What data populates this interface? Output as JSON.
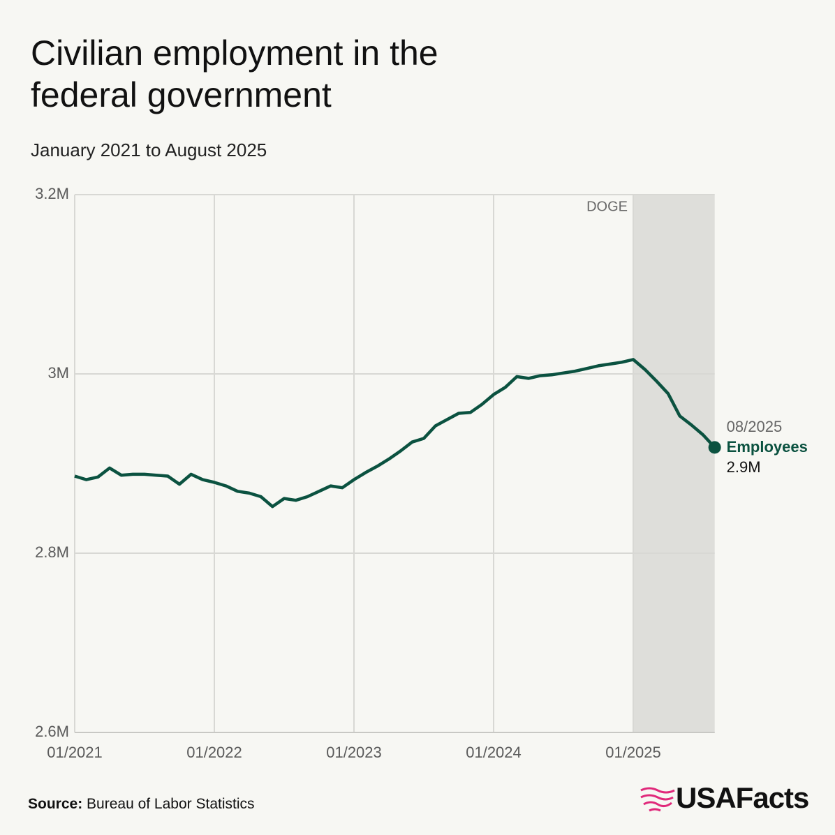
{
  "chart_data": {
    "type": "line",
    "title": "Civilian employment in the federal government",
    "subtitle": "January 2021 to August 2025",
    "x": [
      "01/2021",
      "02/2021",
      "03/2021",
      "04/2021",
      "05/2021",
      "06/2021",
      "07/2021",
      "08/2021",
      "09/2021",
      "10/2021",
      "11/2021",
      "12/2021",
      "01/2022",
      "02/2022",
      "03/2022",
      "04/2022",
      "05/2022",
      "06/2022",
      "07/2022",
      "08/2022",
      "09/2022",
      "10/2022",
      "11/2022",
      "12/2022",
      "01/2023",
      "02/2023",
      "03/2023",
      "04/2023",
      "05/2023",
      "06/2023",
      "07/2023",
      "08/2023",
      "09/2023",
      "10/2023",
      "11/2023",
      "12/2023",
      "01/2024",
      "02/2024",
      "03/2024",
      "04/2024",
      "05/2024",
      "06/2024",
      "07/2024",
      "08/2024",
      "09/2024",
      "10/2024",
      "11/2024",
      "12/2024",
      "01/2025",
      "02/2025",
      "03/2025",
      "04/2025",
      "05/2025",
      "06/2025",
      "07/2025",
      "08/2025"
    ],
    "series": [
      {
        "name": "Employees",
        "color": "#0b5240",
        "values": [
          2886000,
          2882000,
          2885000,
          2895000,
          2887000,
          2888000,
          2888000,
          2887000,
          2886000,
          2877000,
          2888000,
          2882000,
          2879000,
          2875000,
          2869000,
          2867000,
          2863000,
          2852000,
          2861000,
          2859000,
          2863000,
          2869000,
          2875000,
          2873000,
          2882000,
          2890000,
          2897000,
          2905000,
          2914000,
          2924000,
          2928000,
          2942000,
          2949000,
          2956000,
          2957000,
          2966000,
          2977000,
          2985000,
          2997000,
          2995000,
          2998000,
          2999000,
          3001000,
          3003000,
          3006000,
          3009000,
          3011000,
          3013000,
          3016000,
          3005000,
          2992000,
          2978000,
          2953000,
          2943000,
          2932000,
          2918000
        ]
      }
    ],
    "end_label": {
      "value_label": "2.9M"
    },
    "xlim": [
      "01/2021",
      "08/2025"
    ],
    "xticks": [
      "01/2021",
      "01/2022",
      "01/2023",
      "01/2024",
      "01/2025"
    ],
    "ylim": [
      2600000,
      3200000
    ],
    "yticks": [
      {
        "value": 2600000,
        "label": "2.6M"
      },
      {
        "value": 2800000,
        "label": "2.8M"
      },
      {
        "value": 3000000,
        "label": "3M"
      },
      {
        "value": 3200000,
        "label": "3.2M"
      }
    ],
    "grid": true,
    "shaded_region": {
      "from": "01/2025",
      "to": "08/2025",
      "label": "DOGE",
      "color": "#dededa"
    },
    "source_label": "Source:",
    "source": "Bureau of Labor Statistics",
    "logo": "USAFacts"
  }
}
